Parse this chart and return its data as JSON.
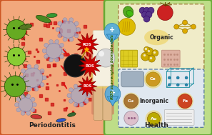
{
  "left_panel_bg": "#F2A87C",
  "left_panel_border": "#CC5522",
  "right_panel_bg": "#BEDD88",
  "right_panel_border": "#66AA33",
  "center_strip_bg": "#88CC44",
  "label_periodontitis": "Periodontitis",
  "label_health": "Health",
  "label_ros_vertical": "ROS scavenging biomaterials",
  "label_organic": "Organic",
  "label_inorganic": "Inorganic",
  "label_ce": "Ce",
  "label_cu": "Cu",
  "label_au": "Au",
  "label_fe": "Fe",
  "ros_star_color": "#CC0000",
  "ros_text_color": "#FFFFFF",
  "bomb_body_color": "#111111",
  "bomb_edge_color": "#333333",
  "fuse_color": "#AA7700",
  "spark_color": "#FFAA00",
  "bolt_color": "#DD1111",
  "dot_color": "#CC1111",
  "bacteria_green_dark": "#4A8822",
  "bacteria_green_mid": "#66AA22",
  "bacteria_green_light": "#88CC33",
  "gray_cell_face": "#A8A8C0",
  "gray_cell_edge": "#7777AA",
  "tooth_color": "#F5F0E0",
  "tooth_edge": "#DDCCAA",
  "root_color": "#E0B888",
  "gum_color": "#CC7766",
  "droplet_color": "#55AADD",
  "droplet_edge": "#2277AA",
  "ball_color": "#D8D8D8",
  "org_box_bg": "#F0ECC8",
  "org_box_edge": "#997733",
  "inorg_box_bg": "#E0E8F0",
  "inorg_box_edge": "#557799",
  "ce_circle_color": "#CC9922",
  "cu_circle_color": "#AA7733",
  "au_circle_color": "#BBAA00",
  "fe_circle_color": "#CC4422",
  "yellow_glow_color": "#EEDD44",
  "vertical_text_color": "#336600"
}
